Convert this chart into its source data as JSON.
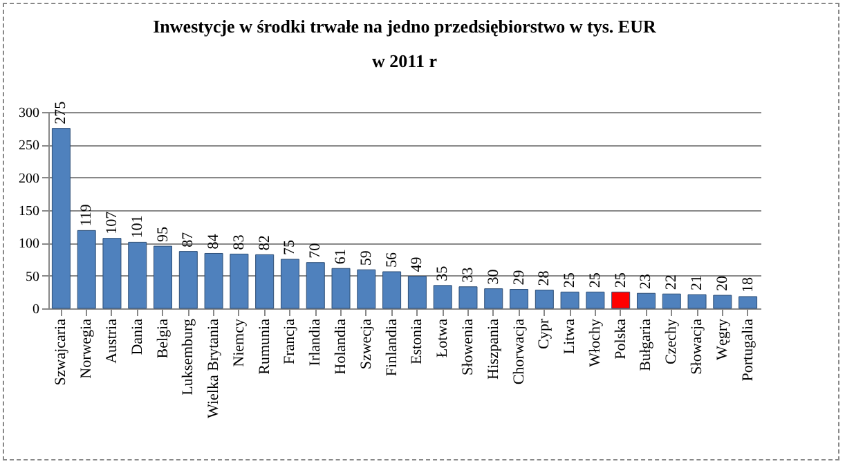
{
  "chart_data": {
    "type": "bar",
    "title": "Inwestycje w środki trwałe na jedno przedsiębiorstwo w tys. EUR",
    "subtitle": "w 2011 r",
    "categories": [
      "Szwajcaria",
      "Norwegia",
      "Austria",
      "Dania",
      "Belgia",
      "Luksemburg",
      "Wielka Brytania",
      "Niemcy",
      "Rumunia",
      "Francja",
      "Irlandia",
      "Holandia",
      "Szwecja",
      "Finlandia",
      "Estonia",
      "Łotwa",
      "Słowenia",
      "Hiszpania",
      "Chorwacja",
      "Cypr",
      "Litwa",
      "Włochy",
      "Polska",
      "Bułgaria",
      "Czechy",
      "Słowacja",
      "Węgry",
      "Portugalia"
    ],
    "values": [
      275,
      119,
      107,
      101,
      95,
      87,
      84,
      83,
      82,
      75,
      70,
      61,
      59,
      56,
      49,
      35,
      33,
      30,
      29,
      28,
      25,
      25,
      25,
      23,
      22,
      21,
      20,
      18
    ],
    "colors": [
      "#4f81bd",
      "#4f81bd",
      "#4f81bd",
      "#4f81bd",
      "#4f81bd",
      "#4f81bd",
      "#4f81bd",
      "#4f81bd",
      "#4f81bd",
      "#4f81bd",
      "#4f81bd",
      "#4f81bd",
      "#4f81bd",
      "#4f81bd",
      "#4f81bd",
      "#4f81bd",
      "#4f81bd",
      "#4f81bd",
      "#4f81bd",
      "#4f81bd",
      "#4f81bd",
      "#4f81bd",
      "#ff0000",
      "#4f81bd",
      "#4f81bd",
      "#4f81bd",
      "#4f81bd",
      "#4f81bd"
    ],
    "ylim": [
      0,
      300
    ],
    "yticks": [
      0,
      50,
      100,
      150,
      200,
      250,
      300
    ],
    "grid": "y",
    "data_labels": true
  }
}
